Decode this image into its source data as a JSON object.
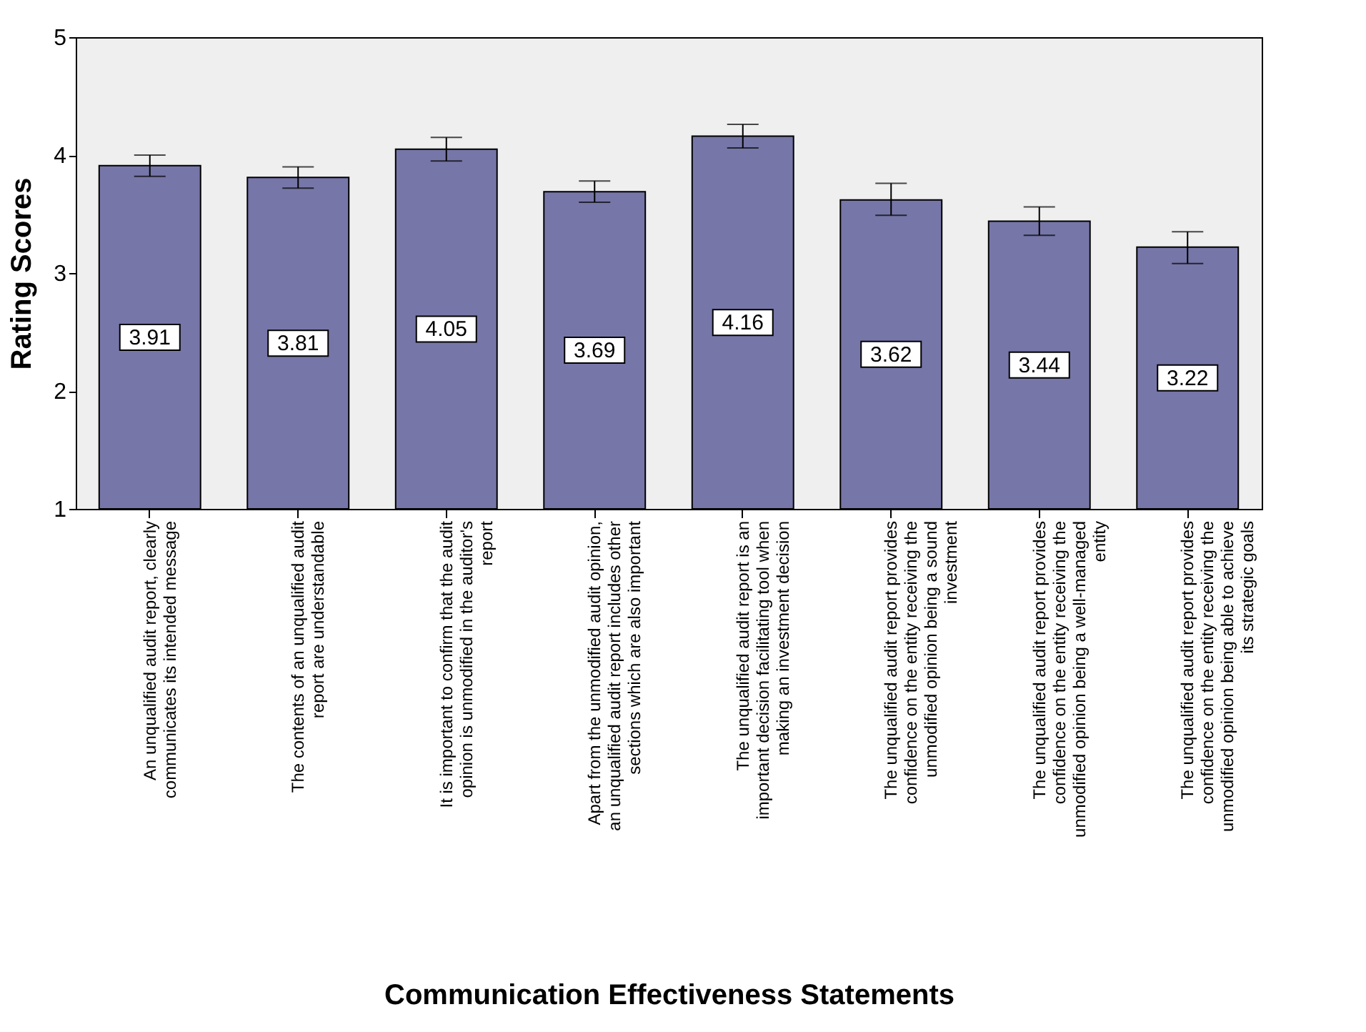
{
  "chart_data": {
    "type": "bar",
    "xlabel": "Communication Effectiveness Statements",
    "ylabel": "Rating Scores",
    "categories": [
      "An unqualified audit report, clearly communicates its intended message",
      "The contents of an unqualified audit report are understandable",
      "It is important to confirm that the audit opinion is unmodified in the auditor's report",
      "Apart from the unmodified audit opinion, an unqualified audit report includes other sections which are also important",
      "The unqualified audit report is an important decision facilitating tool when making an investment decision",
      "The unqualified audit report provides confidence on the entity receiving the unmodified opinion being a sound investment",
      "The unqualified audit report provides confidence on the entity receiving the unmodified opinion being a well-managed entity",
      "The unqualified audit report provides confidence on the entity receiving the unmodified opinion being able to achieve its strategic goals"
    ],
    "values": [
      3.91,
      3.81,
      4.05,
      3.69,
      4.16,
      3.62,
      3.44,
      3.22
    ],
    "errors": [
      [
        3.82,
        4.0
      ],
      [
        3.72,
        3.9
      ],
      [
        3.95,
        4.15
      ],
      [
        3.6,
        3.78
      ],
      [
        4.06,
        4.26
      ],
      [
        3.49,
        3.76
      ],
      [
        3.32,
        3.56
      ],
      [
        3.08,
        3.35
      ]
    ],
    "color": "#7676a8",
    "ylim": [
      1,
      5
    ],
    "yticks": [
      1,
      2,
      3,
      4,
      5
    ],
    "grid": false,
    "data_labels": true
  }
}
